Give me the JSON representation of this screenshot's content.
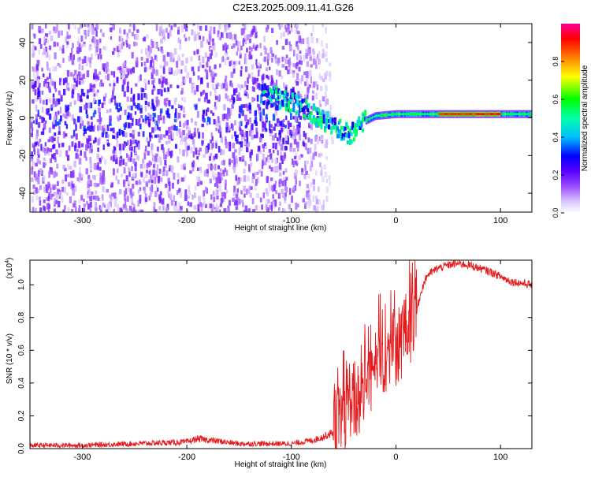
{
  "title": "C2E3.2025.009.11.41.G26",
  "chart_data": [
    {
      "type": "heatmap",
      "name": "spectrogram",
      "xlabel": "Height of straight line (km)",
      "ylabel": "Frequency (Hz)",
      "xlim": [
        -350,
        130
      ],
      "ylim": [
        -50,
        50
      ],
      "xticks": [
        -300,
        -200,
        -100,
        0,
        100
      ],
      "xtick_labels": [
        "-300",
        "-200",
        "-100",
        "0",
        "100"
      ],
      "yticks": [
        -40,
        -20,
        0,
        20,
        40
      ],
      "ytick_labels": [
        "-40",
        "-20",
        "0",
        "20",
        "40"
      ],
      "colorbar": {
        "label": "Normalized spectral amplitude",
        "range": [
          0,
          1
        ],
        "ticks": [
          0.0,
          0.2,
          0.4,
          0.6,
          0.8
        ],
        "tick_labels": [
          "0.0",
          "0.2",
          "0.4",
          "0.6",
          "0.8"
        ],
        "colors": [
          "#ffffff",
          "#b38cff",
          "#6a00ff",
          "#0000ff",
          "#00bfff",
          "#00ff99",
          "#00ff00",
          "#ffff00",
          "#ff8000",
          "#ff0000",
          "#ff00aa"
        ]
      },
      "features": {
        "scatter_region_km": [
          -350,
          -95
        ],
        "scatter_amplitude": 0.2,
        "main_tone": [
          {
            "x": -130,
            "y": 13
          },
          {
            "x": -110,
            "y": 10
          },
          {
            "x": -90,
            "y": 6
          },
          {
            "x": -75,
            "y": 0
          },
          {
            "x": -60,
            "y": -4
          },
          {
            "x": -45,
            "y": -9
          },
          {
            "x": -35,
            "y": -3
          },
          {
            "x": -20,
            "y": 1
          },
          {
            "x": 0,
            "y": 2
          },
          {
            "x": 130,
            "y": 2
          }
        ],
        "strong_tone_start_km": -30,
        "peak_tone_range_km": [
          40,
          100
        ]
      }
    },
    {
      "type": "line",
      "name": "snr",
      "xlabel": "Height of straight line (km)",
      "ylabel": "SNR (10 * v/v)",
      "scale_label": "(x10",
      "scale_exponent": "4",
      "xlim": [
        -350,
        130
      ],
      "ylim": [
        0,
        1.15
      ],
      "xticks": [
        -300,
        -200,
        -100,
        0,
        100
      ],
      "xtick_labels": [
        "-300",
        "-200",
        "-100",
        "0",
        "100"
      ],
      "yticks": [
        0,
        0.2,
        0.4,
        0.6,
        0.8,
        1.0
      ],
      "ytick_labels": [
        "0.0",
        "0.2",
        "0.4",
        "0.6",
        "0.8",
        "1.0"
      ],
      "color": "#e41a1c",
      "x": [
        -350,
        -300,
        -250,
        -200,
        -190,
        -150,
        -120,
        -100,
        -80,
        -70,
        -60,
        -55,
        -50,
        -45,
        -40,
        -35,
        -30,
        -25,
        -20,
        -15,
        -10,
        -5,
        0,
        5,
        10,
        15,
        20,
        25,
        30,
        40,
        50,
        60,
        70,
        80,
        90,
        100,
        110,
        120,
        130
      ],
      "y": [
        0.02,
        0.02,
        0.03,
        0.04,
        0.06,
        0.03,
        0.03,
        0.03,
        0.05,
        0.07,
        0.1,
        0.14,
        0.2,
        0.32,
        0.3,
        0.28,
        0.36,
        0.45,
        0.48,
        0.55,
        0.58,
        0.58,
        0.62,
        0.66,
        0.72,
        0.78,
        0.85,
        0.98,
        1.06,
        1.1,
        1.12,
        1.13,
        1.12,
        1.1,
        1.08,
        1.05,
        1.02,
        1.01,
        1.0
      ]
    }
  ]
}
